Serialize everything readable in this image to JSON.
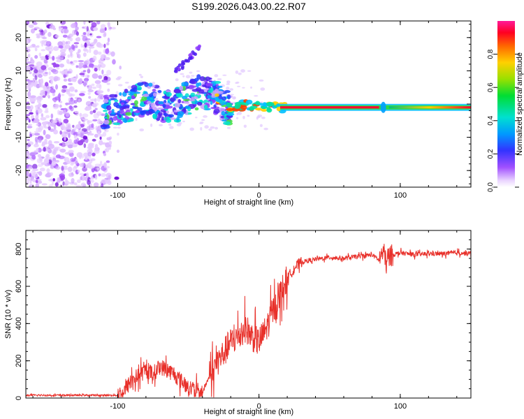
{
  "title": "S199.2026.043.00.22.R07",
  "chart_data": [
    {
      "type": "heatmap",
      "name": "spectrogram",
      "xlabel": "Height of straight line (km)",
      "ylabel": "Frequency (Hz)",
      "xlim": [
        -165,
        150
      ],
      "ylim": [
        -25,
        25
      ],
      "x_ticks": [
        -100,
        0,
        100
      ],
      "y_ticks": [
        -20,
        -10,
        0,
        10,
        20
      ],
      "description_series": {
        "name": "dominant frequency track",
        "x": [
          -110,
          -100,
          -90,
          -80,
          -70,
          -60,
          -50,
          -40,
          -30,
          -20,
          -10,
          0,
          10,
          20,
          40,
          60,
          80,
          85,
          90,
          100,
          120,
          150
        ],
        "y": [
          -3,
          -1,
          0,
          2,
          0,
          -1,
          2,
          4,
          2,
          -2,
          0,
          -1,
          -1,
          -1,
          -1,
          -1,
          -1,
          -0.5,
          0,
          -0.5,
          0,
          0
        ]
      }
    },
    {
      "type": "colorbar",
      "name": "colorbar",
      "label": "Normalized spectral amplitude",
      "range": [
        0.0,
        1.0
      ],
      "ticks": [
        0.0,
        0.2,
        0.4,
        0.6,
        0.8
      ],
      "tick_labels": [
        "0.0",
        "0.2",
        "0.4",
        "0.6",
        "0.8"
      ]
    },
    {
      "type": "line",
      "name": "snr",
      "xlabel": "Height of straight line (km)",
      "ylabel": "SNR (10 * v/v)",
      "xlim": [
        -165,
        150
      ],
      "ylim": [
        0,
        900
      ],
      "x_ticks": [
        -100,
        0,
        100
      ],
      "y_ticks": [
        0,
        200,
        400,
        600,
        800
      ],
      "color": "#e8302a",
      "series": [
        {
          "name": "SNR",
          "x": [
            -165,
            -140,
            -120,
            -100,
            -95,
            -90,
            -85,
            -80,
            -75,
            -70,
            -65,
            -60,
            -55,
            -50,
            -45,
            -40,
            -35,
            -30,
            -25,
            -20,
            -15,
            -10,
            -5,
            0,
            5,
            10,
            15,
            20,
            25,
            30,
            40,
            50,
            60,
            70,
            80,
            85,
            88,
            90,
            92,
            95,
            100,
            110,
            120,
            130,
            140,
            150
          ],
          "y": [
            15,
            15,
            15,
            15,
            40,
            100,
            120,
            150,
            130,
            170,
            150,
            130,
            90,
            60,
            40,
            30,
            120,
            190,
            240,
            300,
            330,
            380,
            330,
            300,
            370,
            470,
            560,
            640,
            700,
            730,
            745,
            755,
            750,
            760,
            770,
            740,
            790,
            720,
            760,
            770,
            780,
            770,
            775,
            775,
            780,
            775
          ]
        }
      ]
    }
  ]
}
